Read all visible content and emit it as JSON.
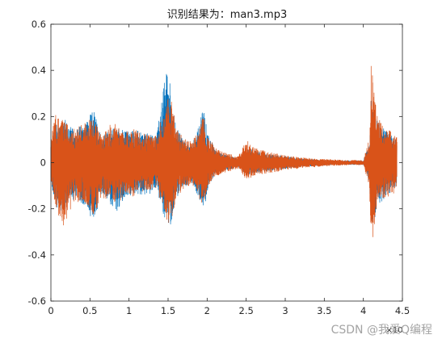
{
  "chart_data": {
    "type": "line",
    "title": "识别结果为：man3.mp3",
    "xlabel": "",
    "ylabel": "",
    "xlim": [
      0,
      4.5
    ],
    "ylim": [
      -0.6,
      0.6
    ],
    "x_exponent_label": "×10",
    "x_ticks": [
      "0",
      "0.5",
      "1",
      "1.5",
      "2",
      "2.5",
      "3",
      "3.5",
      "4",
      "4.5"
    ],
    "y_ticks": [
      "0.6",
      "0.4",
      "0.2",
      "0",
      "-0.2",
      "-0.4",
      "-0.6"
    ],
    "grid": false,
    "series": [
      {
        "color": "#0072BD",
        "envelope_x": [
          0,
          0.05,
          0.15,
          0.3,
          0.45,
          0.55,
          0.65,
          0.75,
          0.85,
          0.95,
          1.05,
          1.2,
          1.35,
          1.45,
          1.5,
          1.55,
          1.6,
          1.7,
          1.8,
          1.9,
          1.95,
          2.0,
          2.1,
          2.2,
          2.3,
          2.4,
          2.5,
          2.6,
          2.8,
          3.0,
          3.2,
          3.4,
          3.6,
          3.8,
          4.0,
          4.08,
          4.1,
          4.13,
          4.18,
          4.25,
          4.35,
          4.42
        ],
        "envelope_upper": [
          0.09,
          0.18,
          0.22,
          0.15,
          0.2,
          0.25,
          0.12,
          0.16,
          0.17,
          0.15,
          0.16,
          0.14,
          0.13,
          0.38,
          0.47,
          0.3,
          0.17,
          0.11,
          0.09,
          0.18,
          0.26,
          0.16,
          0.06,
          0.04,
          0.03,
          0.02,
          0.08,
          0.06,
          0.04,
          0.03,
          0.02,
          0.015,
          0.01,
          0.01,
          0.01,
          0.1,
          0.3,
          0.25,
          0.2,
          0.17,
          0.14,
          0.11
        ],
        "envelope_lower": [
          -0.09,
          -0.2,
          -0.24,
          -0.17,
          -0.21,
          -0.27,
          -0.15,
          -0.19,
          -0.24,
          -0.16,
          -0.15,
          -0.15,
          -0.12,
          -0.26,
          -0.32,
          -0.28,
          -0.17,
          -0.12,
          -0.09,
          -0.18,
          -0.22,
          -0.14,
          -0.05,
          -0.04,
          -0.03,
          -0.02,
          -0.06,
          -0.05,
          -0.04,
          -0.03,
          -0.02,
          -0.015,
          -0.01,
          -0.01,
          -0.01,
          -0.1,
          -0.34,
          -0.3,
          -0.2,
          -0.18,
          -0.14,
          -0.12
        ]
      },
      {
        "color": "#D95319",
        "envelope_x": [
          0,
          0.05,
          0.15,
          0.3,
          0.45,
          0.55,
          0.65,
          0.75,
          0.85,
          0.95,
          1.05,
          1.2,
          1.35,
          1.45,
          1.5,
          1.55,
          1.6,
          1.7,
          1.8,
          1.9,
          1.95,
          2.0,
          2.1,
          2.2,
          2.3,
          2.4,
          2.5,
          2.6,
          2.8,
          3.0,
          3.2,
          3.4,
          3.6,
          3.8,
          4.0,
          4.08,
          4.1,
          4.13,
          4.18,
          4.25,
          4.35,
          4.42
        ],
        "envelope_upper": [
          0.1,
          0.23,
          0.2,
          0.16,
          0.2,
          0.21,
          0.13,
          0.17,
          0.18,
          0.14,
          0.16,
          0.14,
          0.13,
          0.25,
          0.31,
          0.27,
          0.16,
          0.12,
          0.1,
          0.16,
          0.22,
          0.14,
          0.07,
          0.05,
          0.04,
          0.03,
          0.11,
          0.07,
          0.05,
          0.035,
          0.025,
          0.02,
          0.015,
          0.012,
          0.012,
          0.12,
          0.56,
          0.35,
          0.22,
          0.18,
          0.15,
          0.12
        ],
        "envelope_lower": [
          -0.1,
          -0.2,
          -0.31,
          -0.18,
          -0.2,
          -0.25,
          -0.16,
          -0.18,
          -0.2,
          -0.15,
          -0.16,
          -0.14,
          -0.12,
          -0.23,
          -0.29,
          -0.3,
          -0.16,
          -0.13,
          -0.1,
          -0.17,
          -0.2,
          -0.13,
          -0.07,
          -0.05,
          -0.04,
          -0.03,
          -0.08,
          -0.06,
          -0.05,
          -0.035,
          -0.025,
          -0.02,
          -0.015,
          -0.012,
          -0.012,
          -0.12,
          -0.42,
          -0.36,
          -0.22,
          -0.19,
          -0.15,
          -0.12
        ]
      }
    ]
  },
  "watermark": "CSDN @我爱Q编程"
}
